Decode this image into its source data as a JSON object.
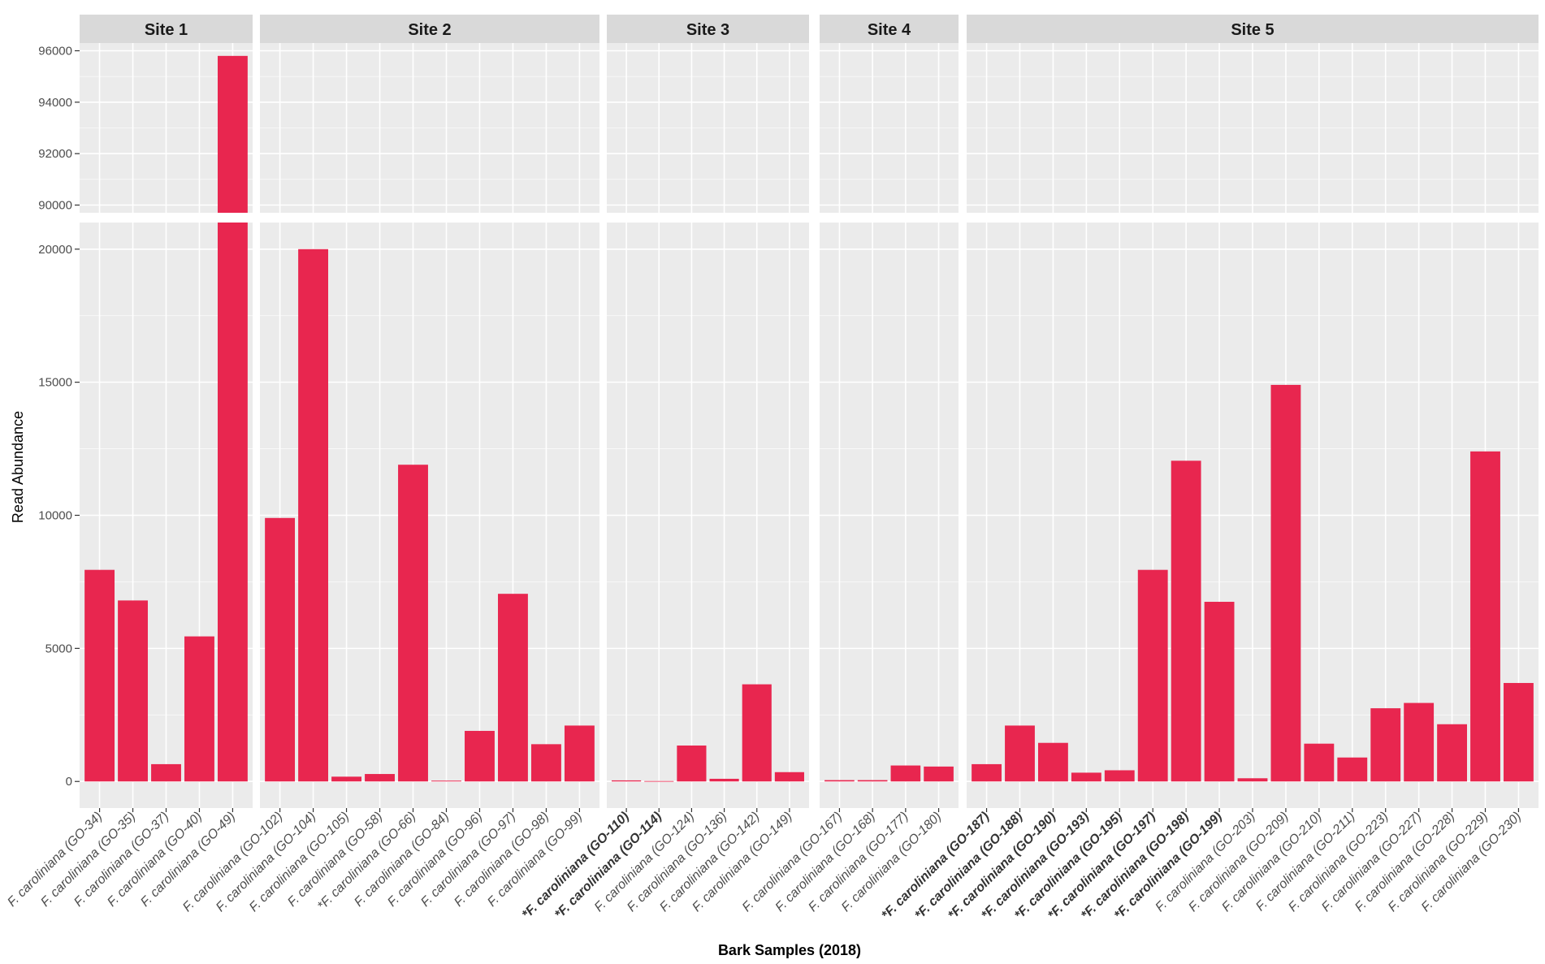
{
  "chart_data": {
    "type": "bar",
    "xlabel": "Bark Samples (2018)",
    "ylabel": "Read Abundance",
    "bar_color": "#E8264F",
    "panel_background": "#EBEBEB",
    "strip_background": "#D9D9D9",
    "grid": true,
    "y_panels": [
      {
        "ylim": [
          89700,
          96300
        ],
        "ticks": [
          90000,
          92000,
          94000,
          96000
        ],
        "tick_labels": [
          "90000",
          "92000",
          "94000",
          "96000"
        ]
      },
      {
        "ylim": [
          -1000,
          21000
        ],
        "ticks": [
          0,
          5000,
          10000,
          15000,
          20000
        ],
        "tick_labels": [
          "0",
          "5000",
          "10000",
          "15000",
          "20000"
        ]
      }
    ],
    "facets": [
      {
        "title": "Site 1",
        "samples": [
          {
            "label": "F. caroliniana (GO-34)",
            "value": 7950,
            "highlight": false
          },
          {
            "label": "F. caroliniana (GO-35)",
            "value": 6800,
            "highlight": false
          },
          {
            "label": "F. caroliniana (GO-37)",
            "value": 650,
            "highlight": false
          },
          {
            "label": "F. caroliniana (GO-40)",
            "value": 5450,
            "highlight": false
          },
          {
            "label": "F. caroliniana (GO-49)",
            "value": 95800,
            "highlight": false
          }
        ]
      },
      {
        "title": "Site 2",
        "samples": [
          {
            "label": "F. caroliniana (GO-102)",
            "value": 9900,
            "highlight": false
          },
          {
            "label": "F. caroliniana (GO-104)",
            "value": 20000,
            "highlight": false
          },
          {
            "label": "F. caroliniana (GO-105)",
            "value": 180,
            "highlight": false
          },
          {
            "label": "F. caroliniana (GO-58)",
            "value": 280,
            "highlight": false
          },
          {
            "label": "*F. caroliniana (GO-66)",
            "value": 11900,
            "highlight": false
          },
          {
            "label": "F. caroliniana (GO-84)",
            "value": 30,
            "highlight": false
          },
          {
            "label": "F. caroliniana (GO-96)",
            "value": 1900,
            "highlight": false
          },
          {
            "label": "F. caroliniana (GO-97)",
            "value": 7050,
            "highlight": false
          },
          {
            "label": "F. caroliniana (GO-98)",
            "value": 1400,
            "highlight": false
          },
          {
            "label": "F. caroliniana (GO-99)",
            "value": 2100,
            "highlight": false
          }
        ]
      },
      {
        "title": "Site 3",
        "samples": [
          {
            "label": "*F. caroliniana (GO-110)",
            "value": 40,
            "highlight": true
          },
          {
            "label": "*F. caroliniana (GO-114)",
            "value": 15,
            "highlight": true
          },
          {
            "label": "F. caroliniana (GO-124)",
            "value": 1350,
            "highlight": false
          },
          {
            "label": "F. caroliniana (GO-136)",
            "value": 100,
            "highlight": false
          },
          {
            "label": "F. caroliniana (GO-142)",
            "value": 3650,
            "highlight": false
          },
          {
            "label": "F. caroliniana (GO-149)",
            "value": 350,
            "highlight": false
          }
        ]
      },
      {
        "title": "Site 4",
        "samples": [
          {
            "label": "F. caroliniana (GO-167)",
            "value": 50,
            "highlight": false
          },
          {
            "label": "F. caroliniana (GO-168)",
            "value": 50,
            "highlight": false
          },
          {
            "label": "F. caroliniana (GO-177)",
            "value": 600,
            "highlight": false
          },
          {
            "label": "F. caroliniana (GO-180)",
            "value": 560,
            "highlight": false
          }
        ]
      },
      {
        "title": "Site 5",
        "samples": [
          {
            "label": "*F. caroliniana (GO-187)",
            "value": 650,
            "highlight": true
          },
          {
            "label": "*F. caroliniana (GO-188)",
            "value": 2100,
            "highlight": true
          },
          {
            "label": "*F. caroliniana (GO-190)",
            "value": 1450,
            "highlight": true
          },
          {
            "label": "*F. caroliniana (GO-193)",
            "value": 330,
            "highlight": true
          },
          {
            "label": "*F. caroliniana (GO-195)",
            "value": 420,
            "highlight": true
          },
          {
            "label": "*F. caroliniana (GO-197)",
            "value": 7950,
            "highlight": true
          },
          {
            "label": "*F. caroliniana (GO-198)",
            "value": 12050,
            "highlight": true
          },
          {
            "label": "*F. caroliniana (GO-199)",
            "value": 6750,
            "highlight": true
          },
          {
            "label": "F. caroliniana (GO-203)",
            "value": 120,
            "highlight": false
          },
          {
            "label": "F. caroliniana (GO-209)",
            "value": 14900,
            "highlight": false
          },
          {
            "label": "F. caroliniana (GO-210)",
            "value": 1420,
            "highlight": false
          },
          {
            "label": "F. caroliniana (GO-211)",
            "value": 900,
            "highlight": false
          },
          {
            "label": "F. caroliniana (GO-223)",
            "value": 2750,
            "highlight": false
          },
          {
            "label": "F. caroliniana (GO-227)",
            "value": 2950,
            "highlight": false
          },
          {
            "label": "F. caroliniana (GO-228)",
            "value": 2150,
            "highlight": false
          },
          {
            "label": "F. caroliniana (GO-229)",
            "value": 12400,
            "highlight": false
          },
          {
            "label": "F. caroliniana (GO-230)",
            "value": 3700,
            "highlight": false
          }
        ]
      }
    ]
  }
}
